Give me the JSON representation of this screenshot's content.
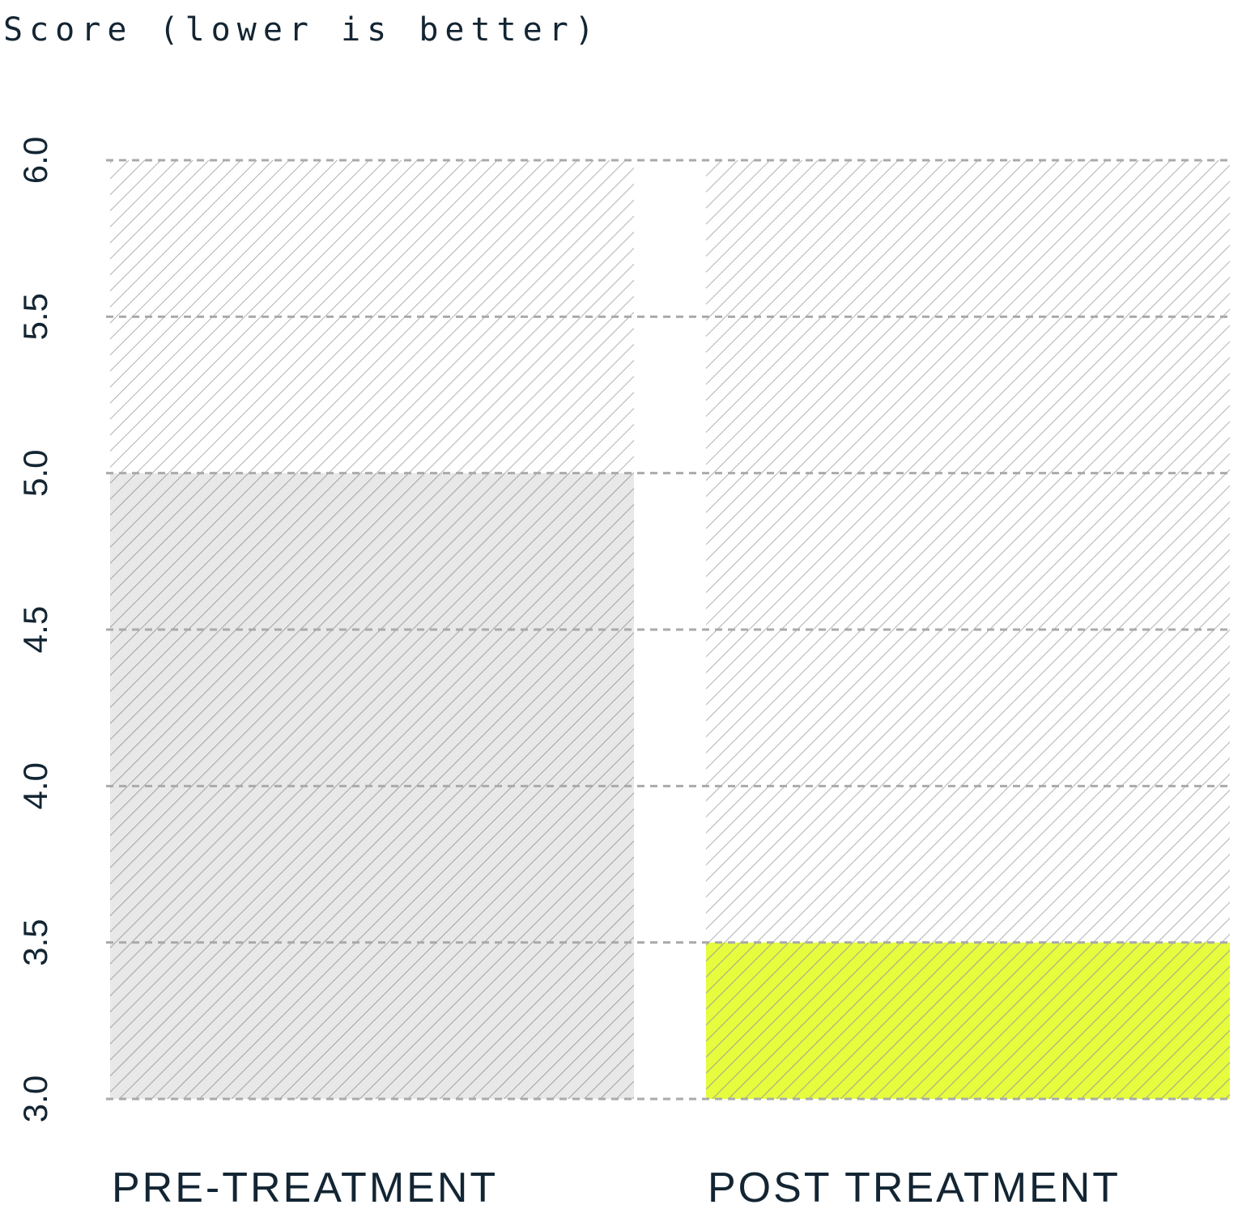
{
  "chart_data": {
    "type": "bar",
    "ylabel": "Score (lower is better)",
    "categories": [
      "PRE-TREATMENT",
      "POST TREATMENT"
    ],
    "values": [
      5.0,
      3.5
    ],
    "ylim": [
      3.0,
      6.0
    ],
    "yticks": [
      "3.0",
      "3.5",
      "4.0",
      "4.5",
      "5.0",
      "5.5",
      "6.0"
    ],
    "grid": true,
    "colors": {
      "bar_pre": "#e8e8e8",
      "bar_post": "#e6fc3f",
      "hatch": "#9aa0a4",
      "hatch_on_bar": "#8c9196",
      "grid": "#aaaaaa",
      "text": "#132533"
    }
  }
}
